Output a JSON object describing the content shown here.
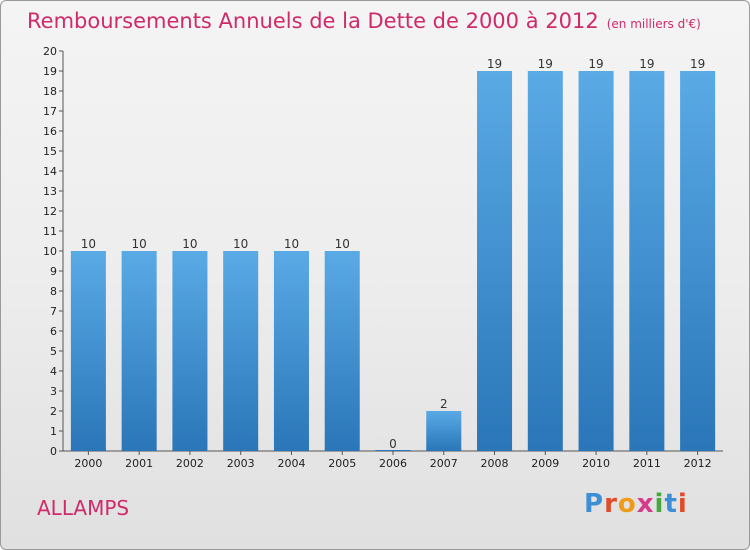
{
  "chart_data": {
    "type": "bar",
    "title": "Remboursements Annuels de la Dette de 2000 à 2012",
    "subtitle": "(en milliers d'€)",
    "categories": [
      "2000",
      "2001",
      "2002",
      "2003",
      "2004",
      "2005",
      "2006",
      "2007",
      "2008",
      "2009",
      "2010",
      "2011",
      "2012"
    ],
    "values": [
      10,
      10,
      10,
      10,
      10,
      10,
      0,
      2,
      19,
      19,
      19,
      19,
      19
    ],
    "data_labels": [
      "10",
      "10",
      "10",
      "10",
      "10",
      "10",
      "0",
      "2",
      "19",
      "19",
      "19",
      "19",
      "19"
    ],
    "ylim": [
      0,
      20
    ],
    "yticks": [
      "0",
      "1",
      "2",
      "3",
      "4",
      "5",
      "6",
      "7",
      "8",
      "9",
      "10",
      "11",
      "12",
      "13",
      "14",
      "15",
      "16",
      "17",
      "18",
      "19",
      "20"
    ],
    "grid": false,
    "bar_color_light": "#5aaae6",
    "bar_color_dark": "#2a76b8",
    "title_color": "#d02a6a"
  },
  "footer": {
    "commune": "ALLAMPS",
    "logo_letters": [
      "P",
      "r",
      "o",
      "x",
      "i",
      "t",
      "i"
    ]
  }
}
